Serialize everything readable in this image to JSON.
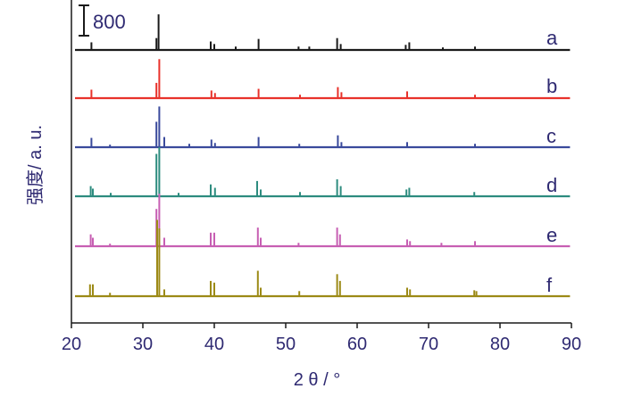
{
  "chart_data": {
    "type": "line",
    "title": "",
    "xlabel": "2 θ / °",
    "ylabel": "强度/ a. u.",
    "xlim": [
      20,
      90
    ],
    "xticks": [
      "20",
      "30",
      "40",
      "50",
      "60",
      "70",
      "80",
      "90"
    ],
    "grid": false,
    "scale_bar": {
      "label": "800",
      "value": 800
    },
    "series": [
      {
        "name": "a",
        "color": "#1a1a1a",
        "baseline": 0,
        "peaks": [
          [
            22.8,
            9
          ],
          [
            31.9,
            14
          ],
          [
            32.2,
            42
          ],
          [
            39.5,
            10
          ],
          [
            40.0,
            7
          ],
          [
            43.0,
            4
          ],
          [
            46.2,
            13
          ],
          [
            51.8,
            4
          ],
          [
            53.3,
            4
          ],
          [
            57.2,
            14
          ],
          [
            57.7,
            7
          ],
          [
            66.8,
            6
          ],
          [
            67.3,
            9
          ],
          [
            72.0,
            3
          ],
          [
            76.5,
            4
          ]
        ]
      },
      {
        "name": "b",
        "color": "#e8322b",
        "baseline": 0,
        "peaks": [
          [
            22.8,
            10
          ],
          [
            31.9,
            18
          ],
          [
            32.3,
            46
          ],
          [
            39.6,
            9
          ],
          [
            40.1,
            6
          ],
          [
            46.2,
            11
          ],
          [
            52.0,
            4
          ],
          [
            57.3,
            13
          ],
          [
            57.8,
            7
          ],
          [
            67.0,
            8
          ],
          [
            76.5,
            4
          ]
        ]
      },
      {
        "name": "c",
        "color": "#3a4a9c",
        "baseline": 0,
        "peaks": [
          [
            22.8,
            11
          ],
          [
            25.4,
            3
          ],
          [
            31.9,
            30
          ],
          [
            32.3,
            48
          ],
          [
            33.0,
            12
          ],
          [
            36.5,
            4
          ],
          [
            39.6,
            9
          ],
          [
            40.1,
            5
          ],
          [
            46.2,
            12
          ],
          [
            51.9,
            4
          ],
          [
            57.3,
            14
          ],
          [
            57.8,
            6
          ],
          [
            67.0,
            6
          ],
          [
            76.5,
            4
          ]
        ]
      },
      {
        "name": "d",
        "color": "#2d8c7f",
        "baseline": 0,
        "peaks": [
          [
            22.7,
            12
          ],
          [
            23.0,
            9
          ],
          [
            25.5,
            4
          ],
          [
            31.9,
            50
          ],
          [
            32.3,
            58
          ],
          [
            35.0,
            4
          ],
          [
            39.5,
            14
          ],
          [
            40.1,
            10
          ],
          [
            46.0,
            18
          ],
          [
            46.5,
            8
          ],
          [
            52.0,
            5
          ],
          [
            57.2,
            20
          ],
          [
            57.7,
            12
          ],
          [
            66.9,
            8
          ],
          [
            67.3,
            10
          ],
          [
            76.4,
            5
          ]
        ]
      },
      {
        "name": "e",
        "color": "#c75fb3",
        "baseline": 0,
        "peaks": [
          [
            22.7,
            14
          ],
          [
            23.0,
            10
          ],
          [
            25.4,
            3
          ],
          [
            31.9,
            44
          ],
          [
            32.3,
            62
          ],
          [
            33.0,
            10
          ],
          [
            39.5,
            16
          ],
          [
            40.0,
            16
          ],
          [
            46.1,
            22
          ],
          [
            46.5,
            10
          ],
          [
            51.8,
            4
          ],
          [
            57.2,
            22
          ],
          [
            57.6,
            14
          ],
          [
            67.0,
            8
          ],
          [
            67.4,
            6
          ],
          [
            71.8,
            4
          ],
          [
            76.5,
            6
          ]
        ]
      },
      {
        "name": "f",
        "color": "#9c8a16",
        "baseline": 0,
        "peaks": [
          [
            22.6,
            14
          ],
          [
            23.0,
            14
          ],
          [
            25.4,
            4
          ],
          [
            32.0,
            90
          ],
          [
            32.3,
            80
          ],
          [
            33.0,
            8
          ],
          [
            39.5,
            18
          ],
          [
            40.0,
            16
          ],
          [
            46.1,
            30
          ],
          [
            46.5,
            10
          ],
          [
            51.9,
            6
          ],
          [
            57.2,
            26
          ],
          [
            57.6,
            18
          ],
          [
            67.0,
            10
          ],
          [
            67.4,
            8
          ],
          [
            76.4,
            7
          ],
          [
            76.7,
            6
          ]
        ]
      }
    ]
  }
}
